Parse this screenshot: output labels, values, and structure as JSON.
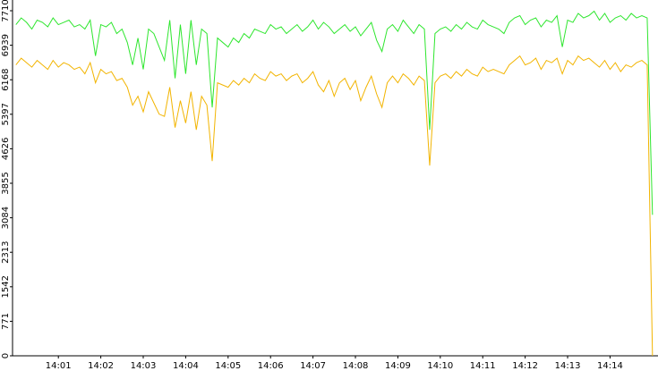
{
  "chart_data": {
    "type": "line",
    "x": [
      840,
      840.125,
      840.25,
      840.375,
      840.5,
      840.625,
      840.75,
      840.875,
      841,
      841.125,
      841.25,
      841.375,
      841.5,
      841.625,
      841.75,
      841.875,
      842,
      842.125,
      842.25,
      842.375,
      842.5,
      842.625,
      842.75,
      842.875,
      843,
      843.125,
      843.25,
      843.375,
      843.5,
      843.625,
      843.75,
      843.875,
      844,
      844.125,
      844.25,
      844.375,
      844.5,
      844.625,
      844.75,
      844.875,
      845,
      845.125,
      845.25,
      845.375,
      845.5,
      845.625,
      845.75,
      845.875,
      846,
      846.125,
      846.25,
      846.375,
      846.5,
      846.625,
      846.75,
      846.875,
      847,
      847.125,
      847.25,
      847.375,
      847.5,
      847.625,
      847.75,
      847.875,
      848,
      848.125,
      848.25,
      848.375,
      848.5,
      848.625,
      848.75,
      848.875,
      849,
      849.125,
      849.25,
      849.375,
      849.5,
      849.625,
      849.75,
      849.875,
      850,
      850.125,
      850.25,
      850.375,
      850.5,
      850.625,
      850.75,
      850.875,
      851,
      851.125,
      851.25,
      851.375,
      851.5,
      851.625,
      851.75,
      851.875,
      852,
      852.125,
      852.25,
      852.375,
      852.5,
      852.625,
      852.75,
      852.875,
      853,
      853.125,
      853.25,
      853.375,
      853.5,
      853.625,
      853.75,
      853.875,
      854,
      854.125,
      854.25,
      854.375,
      854.5,
      854.625,
      854.75,
      854.875,
      855
    ],
    "series": [
      {
        "color": "#2ee62e",
        "values": [
          7400,
          7550,
          7450,
          7300,
          7500,
          7450,
          7350,
          7550,
          7400,
          7450,
          7500,
          7350,
          7400,
          7300,
          7500,
          6700,
          7400,
          7350,
          7450,
          7200,
          7300,
          7000,
          6500,
          7100,
          6400,
          7300,
          7200,
          6900,
          6600,
          7500,
          6200,
          7400,
          6300,
          7500,
          6500,
          7300,
          7200,
          5550,
          7100,
          7000,
          6900,
          7100,
          7000,
          7200,
          7100,
          7300,
          7250,
          7200,
          7400,
          7300,
          7350,
          7200,
          7300,
          7400,
          7250,
          7350,
          7500,
          7300,
          7450,
          7350,
          7200,
          7300,
          7400,
          7250,
          7350,
          7150,
          7300,
          7450,
          7050,
          6800,
          7300,
          7400,
          7250,
          7500,
          7350,
          7200,
          7400,
          7300,
          5050,
          7200,
          7300,
          7350,
          7250,
          7400,
          7300,
          7450,
          7350,
          7300,
          7500,
          7400,
          7350,
          7300,
          7200,
          7450,
          7550,
          7600,
          7400,
          7500,
          7550,
          7350,
          7500,
          7450,
          7600,
          6900,
          7500,
          7450,
          7650,
          7550,
          7600,
          7700,
          7500,
          7650,
          7450,
          7550,
          7600,
          7500,
          7650,
          7550,
          7600,
          7550,
          3150
        ]
      },
      {
        "color": "#f2b400",
        "values": [
          6500,
          6650,
          6550,
          6450,
          6600,
          6500,
          6400,
          6600,
          6450,
          6550,
          6500,
          6400,
          6450,
          6300,
          6550,
          6100,
          6400,
          6300,
          6350,
          6150,
          6200,
          6000,
          5600,
          5800,
          5450,
          5900,
          5650,
          5400,
          5350,
          6000,
          5100,
          5700,
          5200,
          5900,
          5050,
          5800,
          5600,
          4350,
          6100,
          6050,
          6000,
          6150,
          6050,
          6200,
          6100,
          6300,
          6200,
          6150,
          6350,
          6250,
          6300,
          6150,
          6250,
          6300,
          6100,
          6200,
          6350,
          6050,
          5900,
          6150,
          5800,
          6100,
          6200,
          5950,
          6150,
          5700,
          6000,
          6250,
          5850,
          5550,
          6100,
          6250,
          6100,
          6300,
          6200,
          6050,
          6250,
          6150,
          4250,
          6100,
          6250,
          6300,
          6200,
          6350,
          6250,
          6400,
          6300,
          6250,
          6450,
          6350,
          6400,
          6350,
          6300,
          6500,
          6600,
          6700,
          6500,
          6550,
          6650,
          6400,
          6600,
          6550,
          6650,
          6300,
          6600,
          6500,
          6700,
          6600,
          6650,
          6550,
          6450,
          6600,
          6400,
          6550,
          6350,
          6500,
          6450,
          6550,
          6600,
          6500,
          0
        ]
      }
    ],
    "ylim": [
      0,
      7950
    ],
    "yticks": [
      0,
      771,
      1542,
      2313,
      3084,
      3855,
      4626,
      5397,
      6168,
      6939,
      7710
    ],
    "xlim": [
      839.92,
      855.13
    ],
    "xticks": [
      {
        "value": 841,
        "label": "14:01"
      },
      {
        "value": 842,
        "label": "14:02"
      },
      {
        "value": 843,
        "label": "14:03"
      },
      {
        "value": 844,
        "label": "14:04"
      },
      {
        "value": 845,
        "label": "14:05"
      },
      {
        "value": 846,
        "label": "14:06"
      },
      {
        "value": 847,
        "label": "14:07"
      },
      {
        "value": 848,
        "label": "14:08"
      },
      {
        "value": 849,
        "label": "14:09"
      },
      {
        "value": 850,
        "label": "14:10"
      },
      {
        "value": 851,
        "label": "14:11"
      },
      {
        "value": 852,
        "label": "14:12"
      },
      {
        "value": 853,
        "label": "14:13"
      },
      {
        "value": 854,
        "label": "14:14"
      }
    ]
  }
}
